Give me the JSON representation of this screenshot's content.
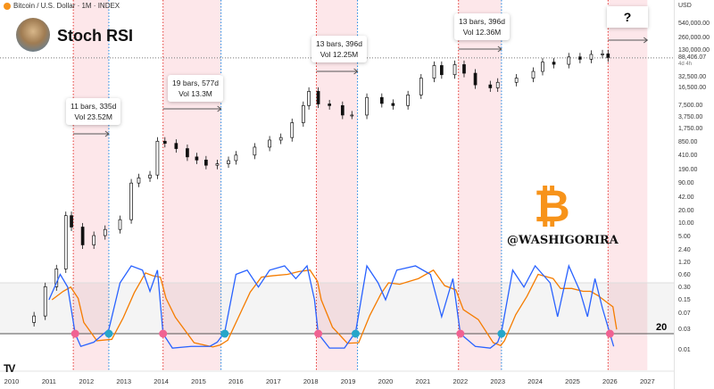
{
  "header": {
    "symbol": "Bitcoin / U.S. Dollar · 1M · INDEX",
    "indicator_title": "Stoch RSI"
  },
  "price_scale": {
    "currency": "USD",
    "ticks": [
      "540,000.00",
      "260,000.00",
      "130,000.00",
      "32,500.00",
      "16,500.00",
      "7,500.00",
      "3,750.00",
      "1,750.00",
      "850.00",
      "410.00",
      "190.00",
      "90.00",
      "42.00",
      "20.00",
      "10.00",
      "5.00",
      "2.40",
      "1.20",
      "0.60",
      "0.30",
      "0.15",
      "0.07",
      "0.03",
      "0.01"
    ],
    "last_price": "88,406.07",
    "countdown": "4d 4h"
  },
  "annotations": [
    {
      "line1": "11 bars, 335d",
      "line2": "Vol 23.52M"
    },
    {
      "line1": "19 bars, 577d",
      "line2": "Vol 13.3M"
    },
    {
      "line1": "13 bars, 396d",
      "line2": "Vol 12.25M"
    },
    {
      "line1": "13 bars, 396d",
      "line2": "Vol 12.36M"
    },
    {
      "line1": "?"
    }
  ],
  "watermark": "@WASHIGORIRA",
  "stoch_level_label": "20",
  "colors": {
    "k": "#2962ff",
    "d": "#f57c00",
    "sell_marker": "#f06292",
    "buy_marker": "#26a6c9",
    "band": "#fde7ea",
    "up": "#ffffff",
    "down": "#111111"
  },
  "chart_data": {
    "type": "candlestick+line",
    "x_ticks": [
      "2010",
      "2011",
      "2012",
      "2013",
      "2014",
      "2015",
      "2016",
      "2017",
      "2018",
      "2019",
      "2020",
      "2021",
      "2022",
      "2023",
      "2024",
      "2025",
      "2026",
      "2027"
    ],
    "y_scale": "log",
    "price": [
      [
        2010.6,
        0.06
      ],
      [
        2010.9,
        0.3
      ],
      [
        2011.2,
        0.8
      ],
      [
        2011.45,
        15
      ],
      [
        2011.6,
        8
      ],
      [
        2011.9,
        3
      ],
      [
        2012.2,
        5
      ],
      [
        2012.5,
        7
      ],
      [
        2012.9,
        12
      ],
      [
        2013.2,
        90
      ],
      [
        2013.4,
        120
      ],
      [
        2013.7,
        140
      ],
      [
        2013.9,
        900
      ],
      [
        2014.1,
        800
      ],
      [
        2014.4,
        600
      ],
      [
        2014.7,
        380
      ],
      [
        2014.95,
        320
      ],
      [
        2015.2,
        240
      ],
      [
        2015.5,
        260
      ],
      [
        2015.8,
        310
      ],
      [
        2016.0,
        420
      ],
      [
        2016.5,
        650
      ],
      [
        2016.9,
        960
      ],
      [
        2017.2,
        1100
      ],
      [
        2017.5,
        2500
      ],
      [
        2017.8,
        6400
      ],
      [
        2017.95,
        14000
      ],
      [
        2018.2,
        7000
      ],
      [
        2018.5,
        6400
      ],
      [
        2018.85,
        3800
      ],
      [
        2019.1,
        3800
      ],
      [
        2019.5,
        10000
      ],
      [
        2019.9,
        7200
      ],
      [
        2020.2,
        6400
      ],
      [
        2020.6,
        11500
      ],
      [
        2020.95,
        29000
      ],
      [
        2021.3,
        58000
      ],
      [
        2021.5,
        35000
      ],
      [
        2021.85,
        61000
      ],
      [
        2022.1,
        38000
      ],
      [
        2022.4,
        20000
      ],
      [
        2022.8,
        17000
      ],
      [
        2023.0,
        23000
      ],
      [
        2023.5,
        29000
      ],
      [
        2023.95,
        42000
      ],
      [
        2024.2,
        70000
      ],
      [
        2024.5,
        62000
      ],
      [
        2024.9,
        93000
      ],
      [
        2025.2,
        82000
      ],
      [
        2025.5,
        107000
      ],
      [
        2025.8,
        110000
      ],
      [
        2025.95,
        88406
      ]
    ],
    "stoch_k": [
      [
        2011.0,
        60
      ],
      [
        2011.3,
        90
      ],
      [
        2011.5,
        75
      ],
      [
        2011.7,
        20
      ],
      [
        2011.85,
        5
      ],
      [
        2012.2,
        10
      ],
      [
        2012.6,
        25
      ],
      [
        2012.9,
        80
      ],
      [
        2013.2,
        100
      ],
      [
        2013.5,
        95
      ],
      [
        2013.7,
        70
      ],
      [
        2013.9,
        95
      ],
      [
        2014.05,
        20
      ],
      [
        2014.3,
        3
      ],
      [
        2014.8,
        5
      ],
      [
        2015.3,
        5
      ],
      [
        2015.5,
        10
      ],
      [
        2015.7,
        22
      ],
      [
        2016.0,
        90
      ],
      [
        2016.3,
        95
      ],
      [
        2016.6,
        75
      ],
      [
        2016.9,
        95
      ],
      [
        2017.3,
        100
      ],
      [
        2017.6,
        85
      ],
      [
        2017.9,
        100
      ],
      [
        2018.1,
        60
      ],
      [
        2018.2,
        20
      ],
      [
        2018.5,
        3
      ],
      [
        2018.9,
        3
      ],
      [
        2019.2,
        22
      ],
      [
        2019.5,
        100
      ],
      [
        2019.8,
        80
      ],
      [
        2020.0,
        60
      ],
      [
        2020.3,
        95
      ],
      [
        2020.8,
        100
      ],
      [
        2021.2,
        90
      ],
      [
        2021.5,
        40
      ],
      [
        2021.8,
        85
      ],
      [
        2022.0,
        20
      ],
      [
        2022.4,
        5
      ],
      [
        2022.8,
        3
      ],
      [
        2023.0,
        10
      ],
      [
        2023.1,
        22
      ],
      [
        2023.4,
        95
      ],
      [
        2023.7,
        75
      ],
      [
        2024.0,
        100
      ],
      [
        2024.4,
        80
      ],
      [
        2024.6,
        40
      ],
      [
        2024.9,
        100
      ],
      [
        2025.2,
        70
      ],
      [
        2025.4,
        40
      ],
      [
        2025.6,
        85
      ],
      [
        2025.8,
        50
      ],
      [
        2026.0,
        20
      ],
      [
        2026.1,
        5
      ]
    ],
    "stoch_levels": [
      80,
      20
    ],
    "sell_signals": [
      2011.7,
      2014.05,
      2018.2,
      2022.0,
      2026.0
    ],
    "buy_signals": [
      2012.6,
      2015.7,
      2019.2,
      2023.1
    ],
    "bear_periods": [
      [
        2011.65,
        2012.6
      ],
      [
        2014.05,
        2015.6
      ],
      [
        2018.15,
        2019.25
      ],
      [
        2021.95,
        2023.1
      ],
      [
        2025.95,
        2027.0
      ]
    ]
  }
}
